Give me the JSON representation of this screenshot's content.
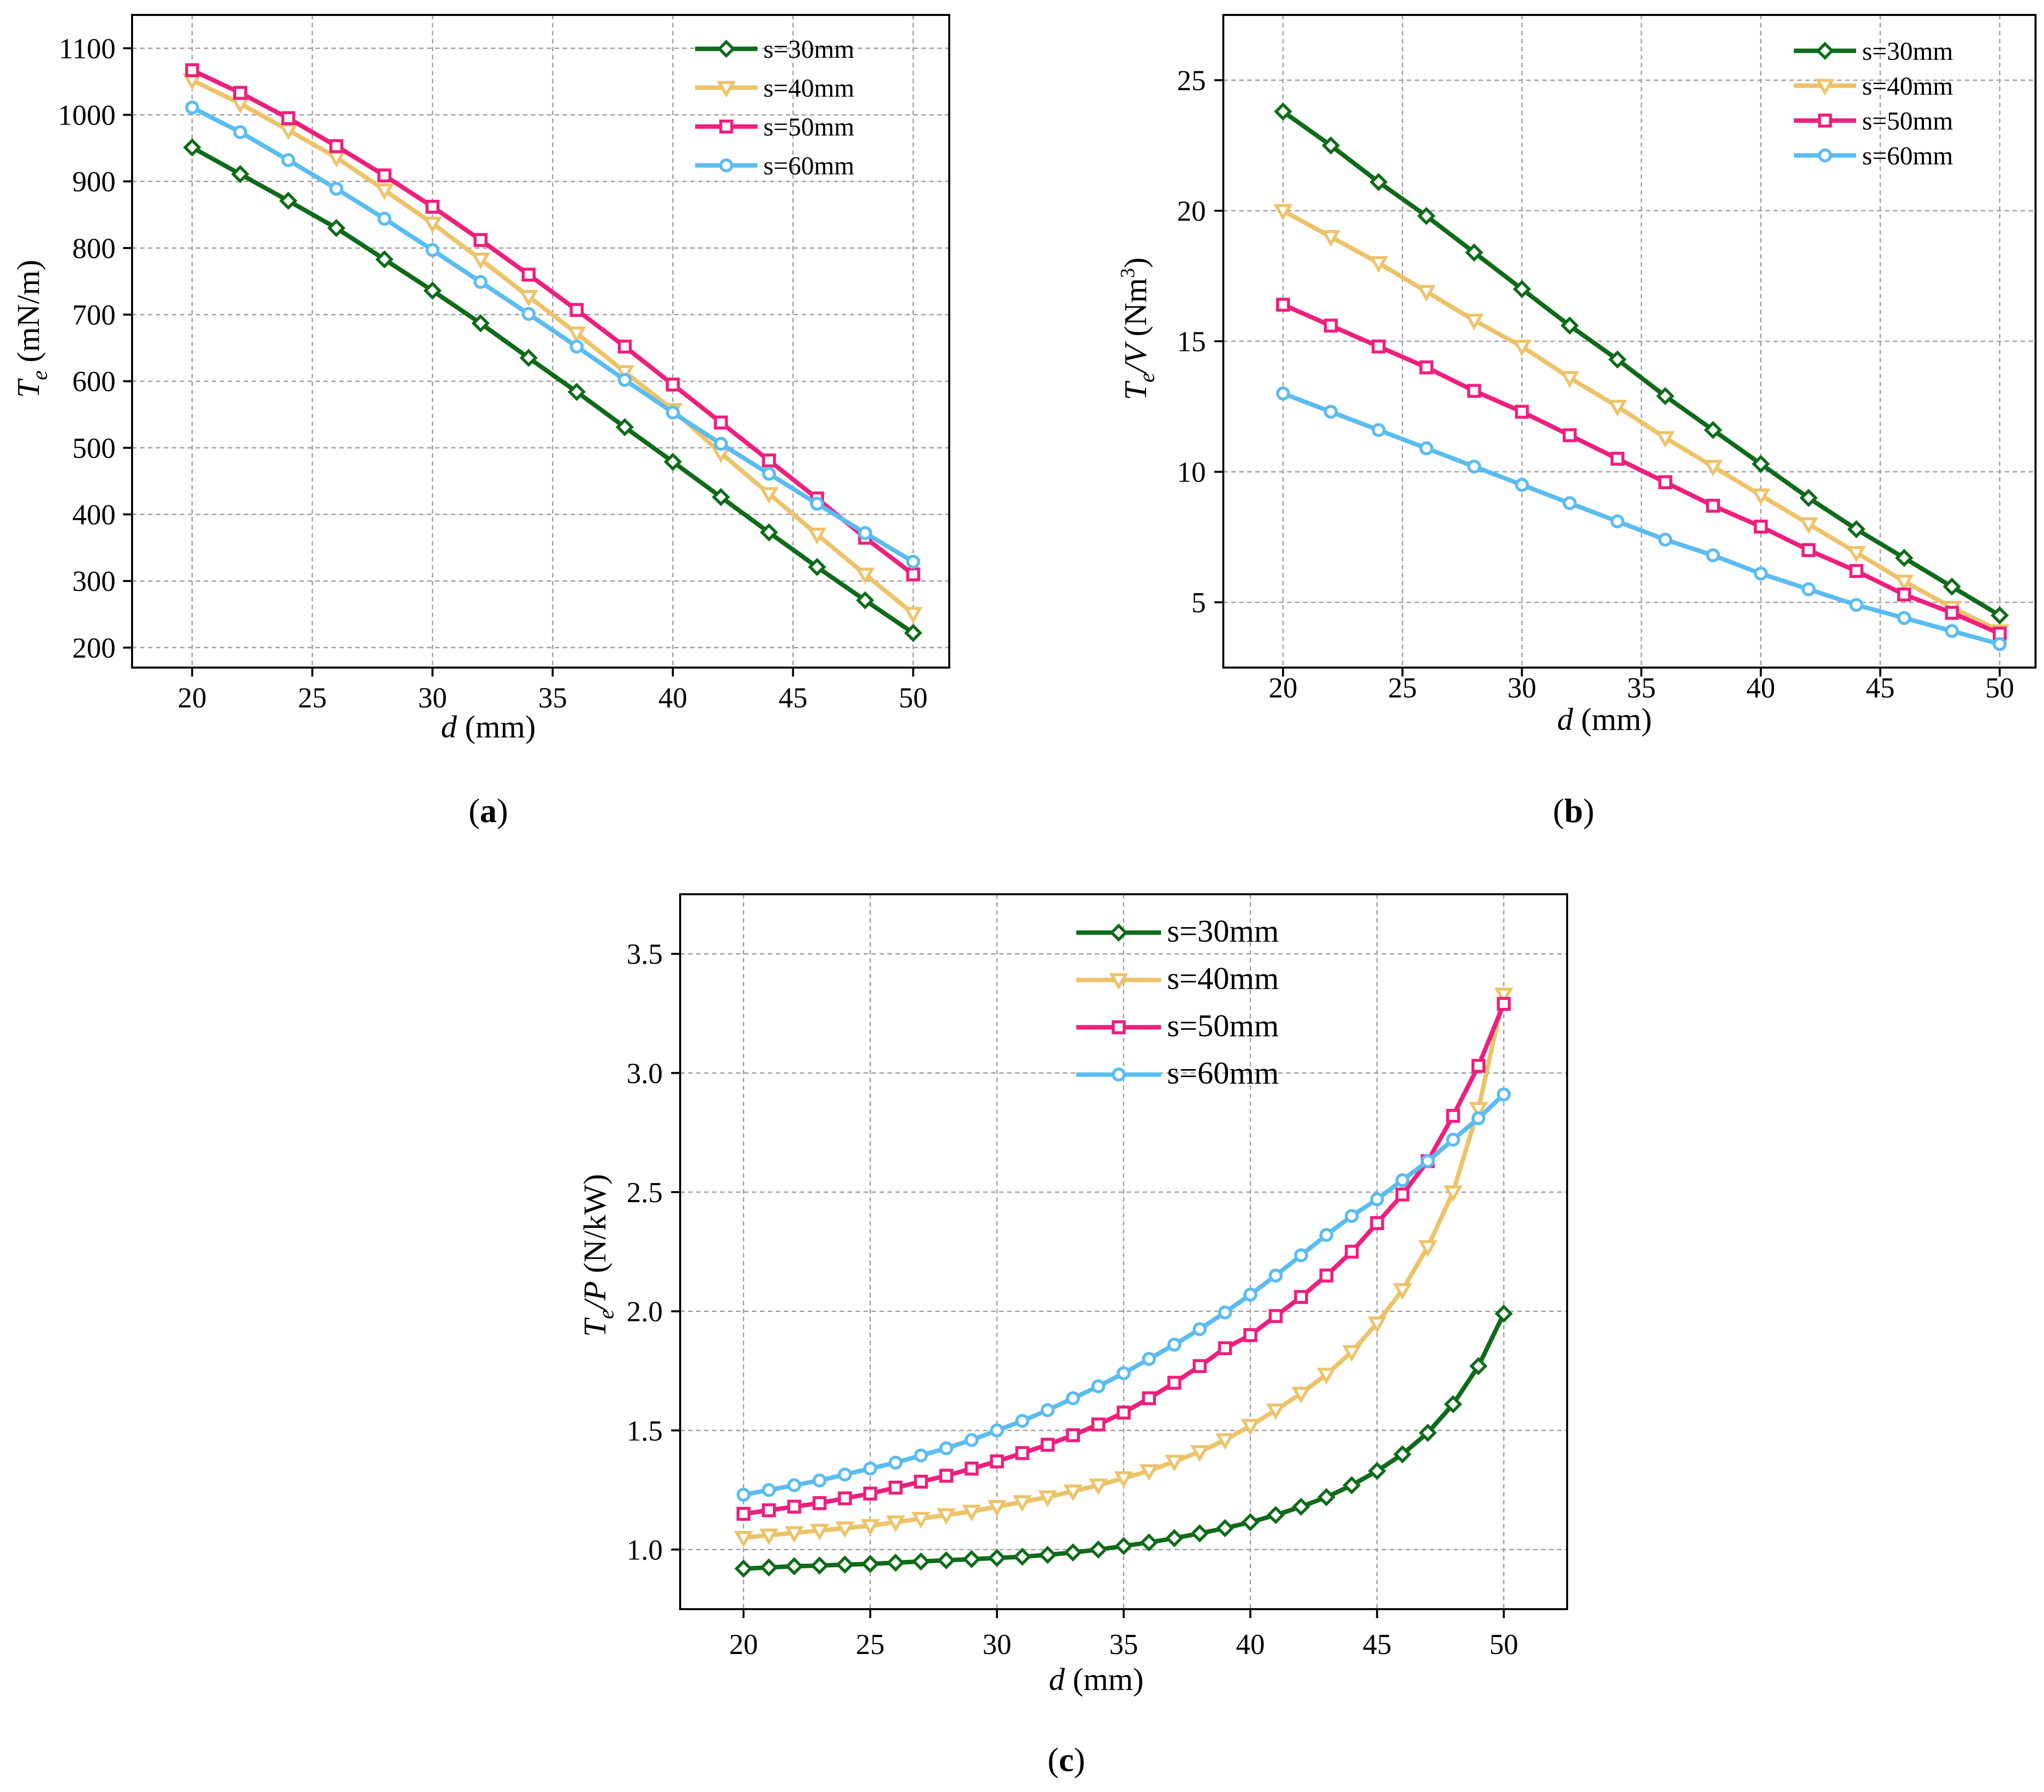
{
  "series_styles": [
    {
      "name": "s=30mm",
      "color": "#0f6b1a",
      "marker": "diamond"
    },
    {
      "name": "s=40mm",
      "color": "#edc36a",
      "marker": "triangle-down"
    },
    {
      "name": "s=50mm",
      "color": "#ee1f7d",
      "marker": "square"
    },
    {
      "name": "s=60mm",
      "color": "#5bbcf0",
      "marker": "circle"
    }
  ],
  "chart_data": [
    {
      "type": "line",
      "caption_letter": "a",
      "xlabel_italic": "d",
      "xlabel_rest": " (mm)",
      "ylabel_main": "T",
      "ylabel_sub": "e",
      "ylabel_rest": " (mN/m)",
      "xlim": [
        17.5,
        51.5
      ],
      "ylim": [
        170,
        1150
      ],
      "xticks": [
        20,
        25,
        30,
        35,
        40,
        45,
        50
      ],
      "yticks": [
        200,
        300,
        400,
        500,
        600,
        700,
        800,
        900,
        1000,
        1100
      ],
      "legend": "top-right",
      "x": [
        20,
        22,
        24,
        26,
        28,
        30,
        32,
        34,
        36,
        38,
        40,
        42,
        44,
        46,
        48,
        50
      ],
      "series": [
        {
          "name": "s=30mm",
          "values": [
            951,
            911,
            871,
            830,
            783,
            736,
            687,
            635,
            584,
            531,
            479,
            426,
            373,
            321,
            271,
            222
          ]
        },
        {
          "name": "s=40mm",
          "values": [
            1052,
            1017,
            977,
            936,
            887,
            837,
            783,
            727,
            672,
            614,
            557,
            492,
            431,
            370,
            310,
            251
          ]
        },
        {
          "name": "s=50mm",
          "values": [
            1067,
            1033,
            995,
            953,
            909,
            862,
            812,
            760,
            707,
            652,
            595,
            538,
            481,
            424,
            365,
            310
          ]
        },
        {
          "name": "s=60mm",
          "values": [
            1011,
            974,
            932,
            889,
            844,
            797,
            749,
            701,
            652,
            602,
            553,
            506,
            461,
            416,
            372,
            329
          ]
        }
      ]
    },
    {
      "type": "line",
      "caption_letter": "b",
      "xlabel_italic": "d",
      "xlabel_rest": " (mm)",
      "ylabel_main": "T",
      "ylabel_sub": "e",
      "ylabel_mid": "/V",
      "ylabel_rest": " (Nm",
      "ylabel_sup": "3",
      "ylabel_end": ")",
      "xlim": [
        17.5,
        51.5
      ],
      "ylim": [
        2.5,
        27.5
      ],
      "xticks": [
        20,
        25,
        30,
        35,
        40,
        45,
        50
      ],
      "yticks": [
        5,
        10,
        15,
        20,
        25
      ],
      "legend": "top-right",
      "x": [
        20,
        22,
        24,
        26,
        28,
        30,
        32,
        34,
        36,
        38,
        40,
        42,
        44,
        46,
        48,
        50
      ],
      "series": [
        {
          "name": "s=30mm",
          "values": [
            23.8,
            22.5,
            21.1,
            19.8,
            18.4,
            17.0,
            15.6,
            14.3,
            12.9,
            11.6,
            10.3,
            9.0,
            7.8,
            6.7,
            5.6,
            4.5
          ]
        },
        {
          "name": "s=40mm",
          "values": [
            20.0,
            19.0,
            18.0,
            16.9,
            15.8,
            14.8,
            13.6,
            12.5,
            11.3,
            10.2,
            9.1,
            8.0,
            6.9,
            5.8,
            4.8,
            3.9
          ]
        },
        {
          "name": "s=50mm",
          "values": [
            16.4,
            15.6,
            14.8,
            14.0,
            13.1,
            12.3,
            11.4,
            10.5,
            9.6,
            8.7,
            7.9,
            7.0,
            6.2,
            5.3,
            4.6,
            3.8
          ]
        },
        {
          "name": "s=60mm",
          "values": [
            13.0,
            12.3,
            11.6,
            10.9,
            10.2,
            9.5,
            8.8,
            8.1,
            7.4,
            6.8,
            6.1,
            5.5,
            4.9,
            4.4,
            3.9,
            3.4
          ]
        }
      ]
    },
    {
      "type": "line",
      "caption_letter": "c",
      "xlabel_italic": "d",
      "xlabel_rest": " (mm)",
      "ylabel_main": "T",
      "ylabel_sub": "e",
      "ylabel_mid": "/P",
      "ylabel_rest": " (N/kW)",
      "xlim": [
        17.5,
        52.5
      ],
      "ylim": [
        0.75,
        3.75
      ],
      "xticks": [
        20,
        25,
        30,
        35,
        40,
        45,
        50
      ],
      "yticks": [
        1.0,
        1.5,
        2.0,
        2.5,
        3.0,
        3.5
      ],
      "legend": "top-center",
      "x": [
        20,
        21,
        22,
        23,
        24,
        25,
        26,
        27,
        28,
        29,
        30,
        31,
        32,
        33,
        34,
        35,
        36,
        37,
        38,
        39,
        40,
        41,
        42,
        43,
        44,
        45,
        46,
        47,
        48,
        49,
        50
      ],
      "series": [
        {
          "name": "s=30mm",
          "values": [
            0.92,
            0.925,
            0.93,
            0.933,
            0.937,
            0.94,
            0.945,
            0.95,
            0.955,
            0.96,
            0.965,
            0.97,
            0.978,
            0.988,
            1.0,
            1.015,
            1.03,
            1.048,
            1.068,
            1.09,
            1.115,
            1.145,
            1.18,
            1.22,
            1.27,
            1.33,
            1.4,
            1.49,
            1.61,
            1.77,
            1.99
          ]
        },
        {
          "name": "s=40mm",
          "values": [
            1.05,
            1.06,
            1.07,
            1.08,
            1.09,
            1.1,
            1.115,
            1.13,
            1.145,
            1.16,
            1.18,
            1.2,
            1.22,
            1.245,
            1.27,
            1.3,
            1.33,
            1.37,
            1.41,
            1.46,
            1.52,
            1.585,
            1.655,
            1.735,
            1.83,
            1.95,
            2.09,
            2.27,
            2.5,
            2.85,
            3.33
          ]
        },
        {
          "name": "s=50mm",
          "values": [
            1.15,
            1.165,
            1.18,
            1.195,
            1.215,
            1.235,
            1.26,
            1.285,
            1.31,
            1.34,
            1.37,
            1.405,
            1.44,
            1.48,
            1.525,
            1.575,
            1.635,
            1.7,
            1.77,
            1.845,
            1.9,
            1.98,
            2.06,
            2.15,
            2.25,
            2.37,
            2.49,
            2.63,
            2.82,
            3.03,
            3.29
          ]
        },
        {
          "name": "s=60mm",
          "values": [
            1.23,
            1.25,
            1.27,
            1.29,
            1.315,
            1.34,
            1.365,
            1.395,
            1.425,
            1.46,
            1.5,
            1.54,
            1.585,
            1.635,
            1.685,
            1.74,
            1.8,
            1.86,
            1.925,
            1.995,
            2.07,
            2.15,
            2.235,
            2.32,
            2.4,
            2.47,
            2.55,
            2.63,
            2.72,
            2.81,
            2.91
          ]
        }
      ]
    }
  ]
}
